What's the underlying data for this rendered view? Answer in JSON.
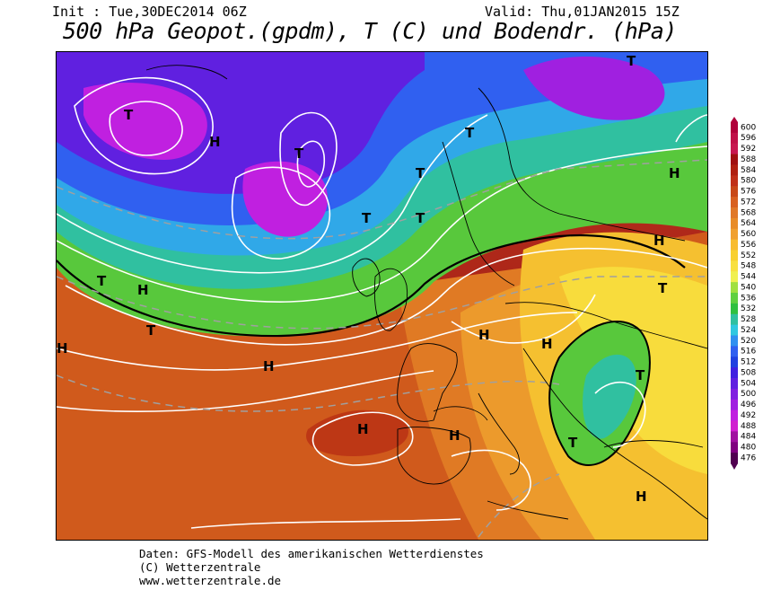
{
  "header": {
    "init": "Init : Tue,30DEC2014 06Z",
    "valid": "Valid: Thu,01JAN2015 15Z",
    "title": "500 hPa Geopot.(gpdm), T (C) und Bodendr. (hPa)"
  },
  "legend": {
    "levels": [
      "600",
      "596",
      "592",
      "588",
      "584",
      "580",
      "576",
      "572",
      "568",
      "564",
      "560",
      "556",
      "552",
      "548",
      "544",
      "540",
      "536",
      "532",
      "528",
      "524",
      "520",
      "516",
      "512",
      "508",
      "504",
      "500",
      "496",
      "492",
      "488",
      "484",
      "480",
      "476"
    ],
    "colors": [
      "#b0003a",
      "#c01048",
      "#c81850",
      "#a01010",
      "#b02010",
      "#c03018",
      "#c84818",
      "#d86020",
      "#e07828",
      "#e88c28",
      "#f0a030",
      "#f8bc30",
      "#f8d030",
      "#f8e040",
      "#f0f050",
      "#a0e040",
      "#60d040",
      "#30c040",
      "#30c0a0",
      "#30c8e0",
      "#3090f0",
      "#3060f0",
      "#2040e0",
      "#4020e0",
      "#6020e0",
      "#8020e0",
      "#a020e0",
      "#c020e0",
      "#d020d0",
      "#a010a0",
      "#800080",
      "#500050"
    ]
  },
  "footer": {
    "line1": "Daten: GFS-Modell des amerikanischen Wetterdienstes",
    "line2": "(C) Wetterzentrale",
    "line3": "www.wetterzentrale.de"
  }
}
